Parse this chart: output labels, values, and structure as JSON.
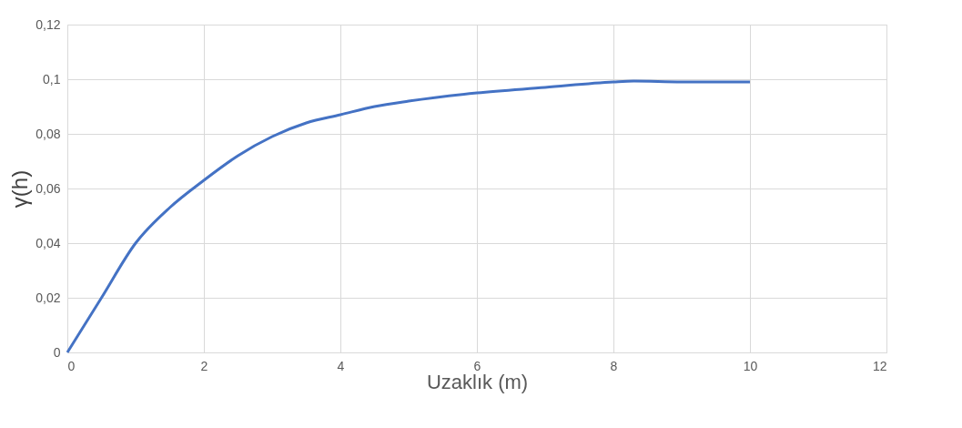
{
  "chart_data": {
    "type": "line",
    "xlabel": "Uzaklık (m)",
    "ylabel": "γ(h)",
    "x": [
      0,
      0.5,
      1,
      1.5,
      2,
      2.5,
      3,
      3.5,
      4,
      4.5,
      5,
      6,
      7,
      8,
      8.3,
      9,
      10
    ],
    "series": [
      {
        "color": "#4472c4",
        "values": [
          0,
          0.02,
          0.04,
          0.053,
          0.063,
          0.072,
          0.079,
          0.084,
          0.087,
          0.09,
          0.092,
          0.095,
          0.097,
          0.099,
          0.0993,
          0.099,
          0.099
        ]
      }
    ],
    "xlim": [
      0,
      12
    ],
    "xticks": [
      0,
      2,
      4,
      6,
      8,
      10,
      12
    ],
    "ylim": [
      0,
      0.12
    ],
    "yticks": [
      {
        "value": 0,
        "label": "0"
      },
      {
        "value": 0.02,
        "label": "0,02"
      },
      {
        "value": 0.04,
        "label": "0,04"
      },
      {
        "value": 0.06,
        "label": "0,06"
      },
      {
        "value": 0.08,
        "label": "0,08"
      },
      {
        "value": 0.1,
        "label": "0,1"
      },
      {
        "value": 0.12,
        "label": "0,12"
      }
    ],
    "grid": true,
    "marker": "none",
    "line_style": "solid"
  }
}
